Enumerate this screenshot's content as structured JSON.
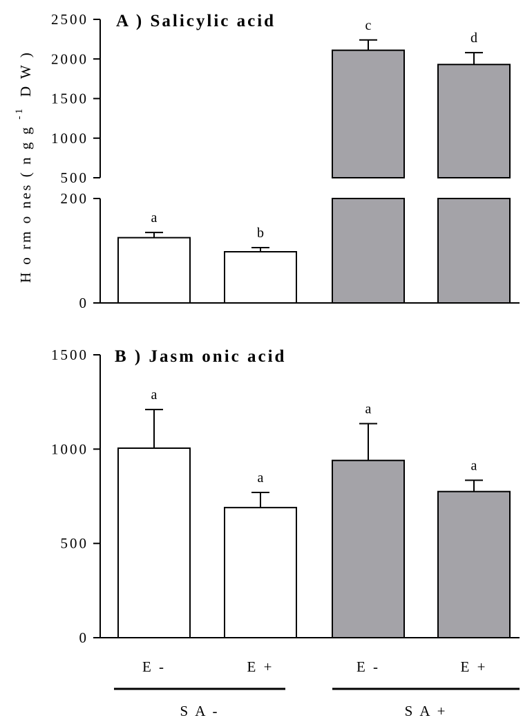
{
  "chart_data": [
    {
      "type": "bar",
      "title": "A ) Salicylic acid",
      "categories": [
        "E -",
        "E +",
        "E -",
        "E +"
      ],
      "groups": [
        {
          "label": "S A -",
          "categories": [
            0,
            1
          ]
        },
        {
          "label": "S A +",
          "categories": [
            2,
            3
          ]
        }
      ],
      "values": [
        125,
        98,
        2110,
        1930
      ],
      "errors": [
        10,
        8,
        130,
        150
      ],
      "significance": [
        "a",
        "b",
        "c",
        "d"
      ],
      "colors": [
        "#ffffff",
        "#ffffff",
        "#a4a3a8",
        "#a4a3a8"
      ],
      "ylabel": "",
      "broken_axis": {
        "lower": {
          "ylim": [
            0,
            200
          ],
          "ticks": [
            0,
            200
          ]
        },
        "upper": {
          "ylim": [
            500,
            2500
          ],
          "ticks": [
            500,
            1000,
            1500,
            2000,
            2500
          ]
        }
      }
    },
    {
      "type": "bar",
      "title": "B ) Jasm onic acid",
      "categories": [
        "E -",
        "E +",
        "E -",
        "E +"
      ],
      "groups": [
        {
          "label": "S A -",
          "categories": [
            0,
            1
          ]
        },
        {
          "label": "S A +",
          "categories": [
            2,
            3
          ]
        }
      ],
      "values": [
        1005,
        690,
        940,
        775
      ],
      "errors": [
        205,
        80,
        195,
        60
      ],
      "significance": [
        "a",
        "a",
        "a",
        "a"
      ],
      "colors": [
        "#ffffff",
        "#ffffff",
        "#a4a3a8",
        "#a4a3a8"
      ],
      "ylabel": "",
      "ylim": [
        0,
        1500
      ],
      "ticks": [
        0,
        500,
        1000,
        1500
      ]
    }
  ],
  "shared_ylabel": "H o rm o nes ( n g g",
  "shared_ylabel_sup": "-1",
  "shared_ylabel_tail": "D W )",
  "x_axis": {
    "categories": [
      "E -",
      "E +",
      "E -",
      "E +"
    ],
    "groups": [
      "S A -",
      "S A +"
    ]
  }
}
